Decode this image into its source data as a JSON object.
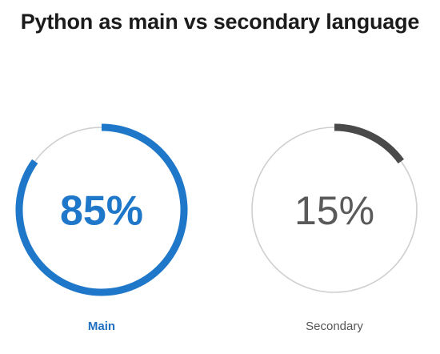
{
  "chart_data": {
    "type": "donut",
    "title": "Python as main vs secondary language",
    "items": [
      {
        "label": "Main",
        "value": 85,
        "value_label": "85%",
        "color": "#1f77c9",
        "label_color": "#1f6fc0",
        "emphasis": true
      },
      {
        "label": "Secondary",
        "value": 15,
        "value_label": "15%",
        "color": "#4a4a4a",
        "label_color": "#555555",
        "emphasis": false
      }
    ],
    "track_color": "#cfcfcf",
    "max": 100
  }
}
